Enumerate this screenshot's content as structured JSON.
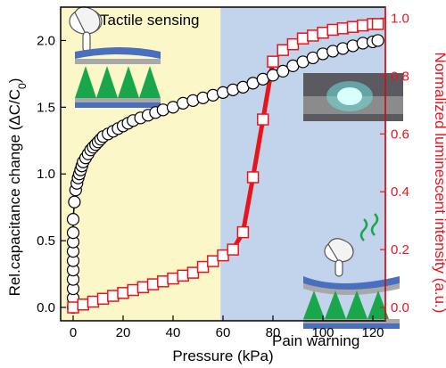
{
  "chart_data": {
    "type": "line",
    "xlabel": "Pressure (kPa)",
    "ylabel_left_main": "Rel.capacitance change (ΔC/C",
    "ylabel_left_sub": "0",
    "ylabel_left_end": ")",
    "ylabel_right": "Normalized luminescent intensity (a.u.)",
    "xlim": [
      -5,
      125
    ],
    "ylim_left": [
      -0.1,
      2.25
    ],
    "ylim_right": [
      -0.04615,
      1.03846
    ],
    "x_ticks": [
      0,
      20,
      40,
      60,
      80,
      100,
      120
    ],
    "x_tick_labels": [
      "0",
      "20",
      "40",
      "60",
      "80",
      "100",
      "120"
    ],
    "y_left_ticks": [
      0,
      0.5,
      1.0,
      1.5,
      2.0
    ],
    "y_left_tick_labels": [
      "0.0",
      "0.5",
      "1.0",
      "1.5",
      "2.0"
    ],
    "y_right_ticks": [
      0,
      0.2,
      0.4,
      0.6,
      0.8,
      1.0
    ],
    "y_right_tick_labels": [
      "0.0",
      "0.2",
      "0.4",
      "0.6",
      "0.8",
      "1.0"
    ],
    "regions": [
      {
        "label": "Tactile sensing",
        "x_range": [
          -5,
          59
        ],
        "color": "#fbf7c9"
      },
      {
        "label": "Pain warning",
        "x_range": [
          59,
          125
        ],
        "color": "#c2d3ec"
      }
    ],
    "series": [
      {
        "axis": "left",
        "marker": "circle",
        "color": "#000000",
        "x": [
          0,
          0,
          0,
          0,
          0,
          0,
          0,
          0,
          0,
          0,
          0.5,
          1,
          1.5,
          2,
          2.5,
          3,
          3.5,
          4,
          5,
          6,
          7,
          8,
          9,
          10,
          11,
          12,
          14,
          16,
          18,
          20,
          22,
          24,
          27,
          30,
          33,
          36,
          40,
          44,
          48,
          52,
          56,
          60,
          64,
          68,
          72,
          76,
          80,
          84,
          88,
          92,
          96,
          100,
          104,
          108,
          112,
          116,
          120,
          122
        ],
        "y": [
          0.0,
          0.07,
          0.14,
          0.21,
          0.28,
          0.35,
          0.42,
          0.49,
          0.56,
          0.66,
          0.79,
          0.88,
          0.93,
          0.97,
          1.0,
          1.03,
          1.06,
          1.09,
          1.12,
          1.15,
          1.18,
          1.2,
          1.22,
          1.24,
          1.26,
          1.28,
          1.3,
          1.32,
          1.34,
          1.36,
          1.38,
          1.4,
          1.42,
          1.44,
          1.46,
          1.48,
          1.5,
          1.53,
          1.55,
          1.57,
          1.59,
          1.61,
          1.63,
          1.65,
          1.68,
          1.71,
          1.74,
          1.77,
          1.81,
          1.84,
          1.87,
          1.9,
          1.92,
          1.94,
          1.96,
          1.98,
          1.99,
          2.0
        ]
      },
      {
        "axis": "right",
        "marker": "square",
        "color": "#e8141c",
        "x": [
          0,
          4,
          8,
          12,
          16,
          20,
          24,
          28,
          32,
          36,
          40,
          44,
          48,
          52,
          56,
          60,
          64,
          68,
          72,
          76,
          80,
          84,
          88,
          92,
          96,
          100,
          104,
          108,
          112,
          116,
          120,
          122
        ],
        "y": [
          0.0,
          0.01,
          0.02,
          0.03,
          0.04,
          0.05,
          0.06,
          0.07,
          0.08,
          0.09,
          0.1,
          0.11,
          0.12,
          0.14,
          0.16,
          0.18,
          0.2,
          0.26,
          0.45,
          0.65,
          0.85,
          0.89,
          0.91,
          0.93,
          0.94,
          0.95,
          0.96,
          0.965,
          0.97,
          0.975,
          0.98,
          0.98
        ]
      }
    ],
    "annotations": [
      {
        "type": "thick-line",
        "axis": "left",
        "x": [
          0,
          0
        ],
        "y": [
          0,
          0.6
        ],
        "color": "#000000"
      },
      {
        "type": "thick-line",
        "axis": "right",
        "x": [
          64,
          68,
          72,
          76,
          80
        ],
        "y": [
          0.2,
          0.26,
          0.45,
          0.65,
          0.85
        ],
        "color": "#e8141c"
      }
    ]
  }
}
